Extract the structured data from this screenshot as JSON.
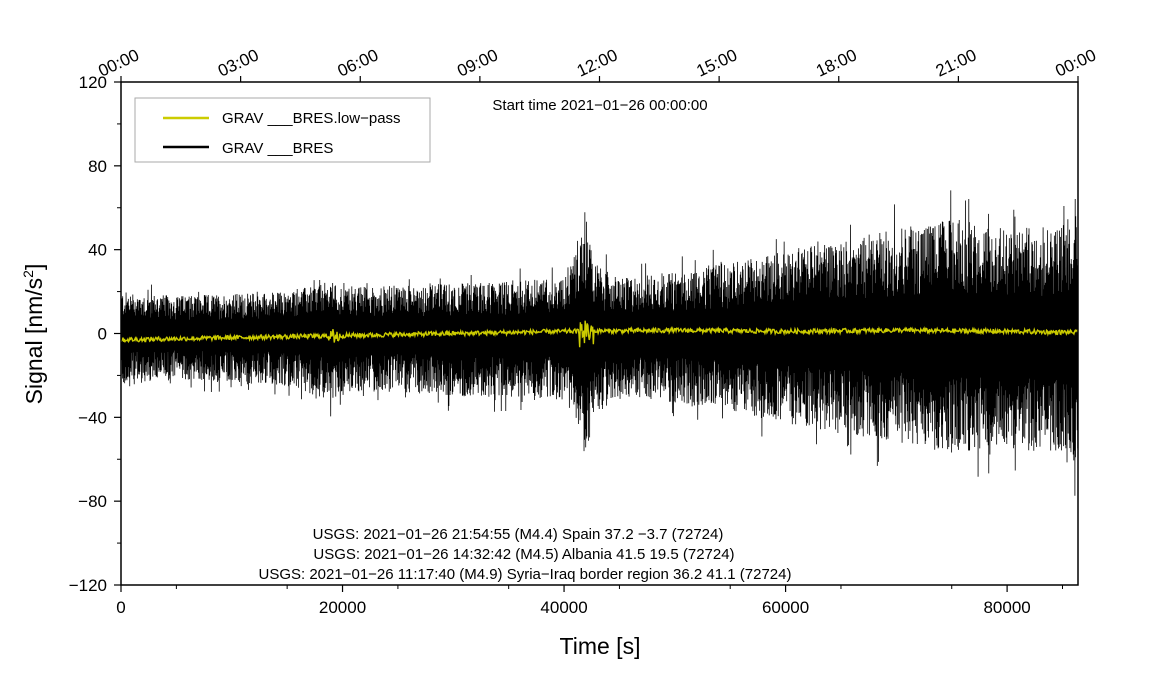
{
  "chart_data": {
    "type": "line",
    "xlabel": "Time [s]",
    "ylabel_base": "Signal [nm/s",
    "ylabel_sup": "2",
    "ylabel_end": "]",
    "xlim": [
      0,
      86400
    ],
    "ylim": [
      -120,
      120
    ],
    "x_ticks": [
      0,
      20000,
      40000,
      60000,
      80000
    ],
    "x_tick_labels": [
      "0",
      "20000",
      "40000",
      "60000",
      "80000"
    ],
    "y_ticks": [
      -120,
      -80,
      -40,
      0,
      40,
      80,
      120
    ],
    "y_tick_labels": [
      "−120",
      "−80",
      "−40",
      "0",
      "40",
      "80",
      "120"
    ],
    "top_axis_labels": [
      "00:00",
      "03:00",
      "06:00",
      "09:00",
      "12:00",
      "15:00",
      "18:00",
      "21:00",
      "00:00"
    ],
    "start_time": "Start time 2021−01−26 00:00:00",
    "legend": {
      "placement": "top-left",
      "entries": [
        {
          "label": "GRAV ___BRES.low−pass",
          "color": "#cccc00"
        },
        {
          "label": "GRAV ___BRES",
          "color": "#000000"
        }
      ]
    },
    "annotations": [
      "USGS: 2021−01−26 21:54:55 (M4.4) Spain 37.2 −3.7 (72724)",
      "USGS: 2021−01−26 14:32:42 (M4.5) Albania 41.5 19.5 (72724)",
      "USGS: 2021−01−26 11:17:40 (M4.9) Syria−Iraq border region 36.2 41.1 (72724)"
    ],
    "series": [
      {
        "name": "GRAV ___BRES",
        "color": "#000000",
        "envelope_x": [
          0,
          5000,
          10000,
          15000,
          19000,
          20000,
          25000,
          30000,
          35000,
          40000,
          41500,
          42000,
          42500,
          45000,
          50000,
          55000,
          60000,
          65000,
          70000,
          75000,
          80000,
          85000,
          86400
        ],
        "envelope_upper": [
          20,
          18,
          19,
          20,
          25,
          22,
          23,
          24,
          25,
          27,
          50,
          62,
          35,
          26,
          30,
          34,
          40,
          45,
          50,
          55,
          50,
          52,
          68
        ],
        "envelope_lower": [
          -25,
          -22,
          -24,
          -25,
          -32,
          -28,
          -28,
          -30,
          -30,
          -32,
          -45,
          -68,
          -40,
          -30,
          -33,
          -37,
          -43,
          -48,
          -52,
          -58,
          -55,
          -58,
          -65
        ]
      },
      {
        "name": "GRAV ___BRES.low−pass",
        "color": "#cccc00",
        "trend_x": [
          0,
          10000,
          20000,
          30000,
          40000,
          50000,
          60000,
          70000,
          80000,
          86400
        ],
        "trend_y": [
          -3,
          -2,
          -1,
          0,
          1,
          1.5,
          1,
          1.5,
          1,
          0.5
        ]
      }
    ]
  }
}
